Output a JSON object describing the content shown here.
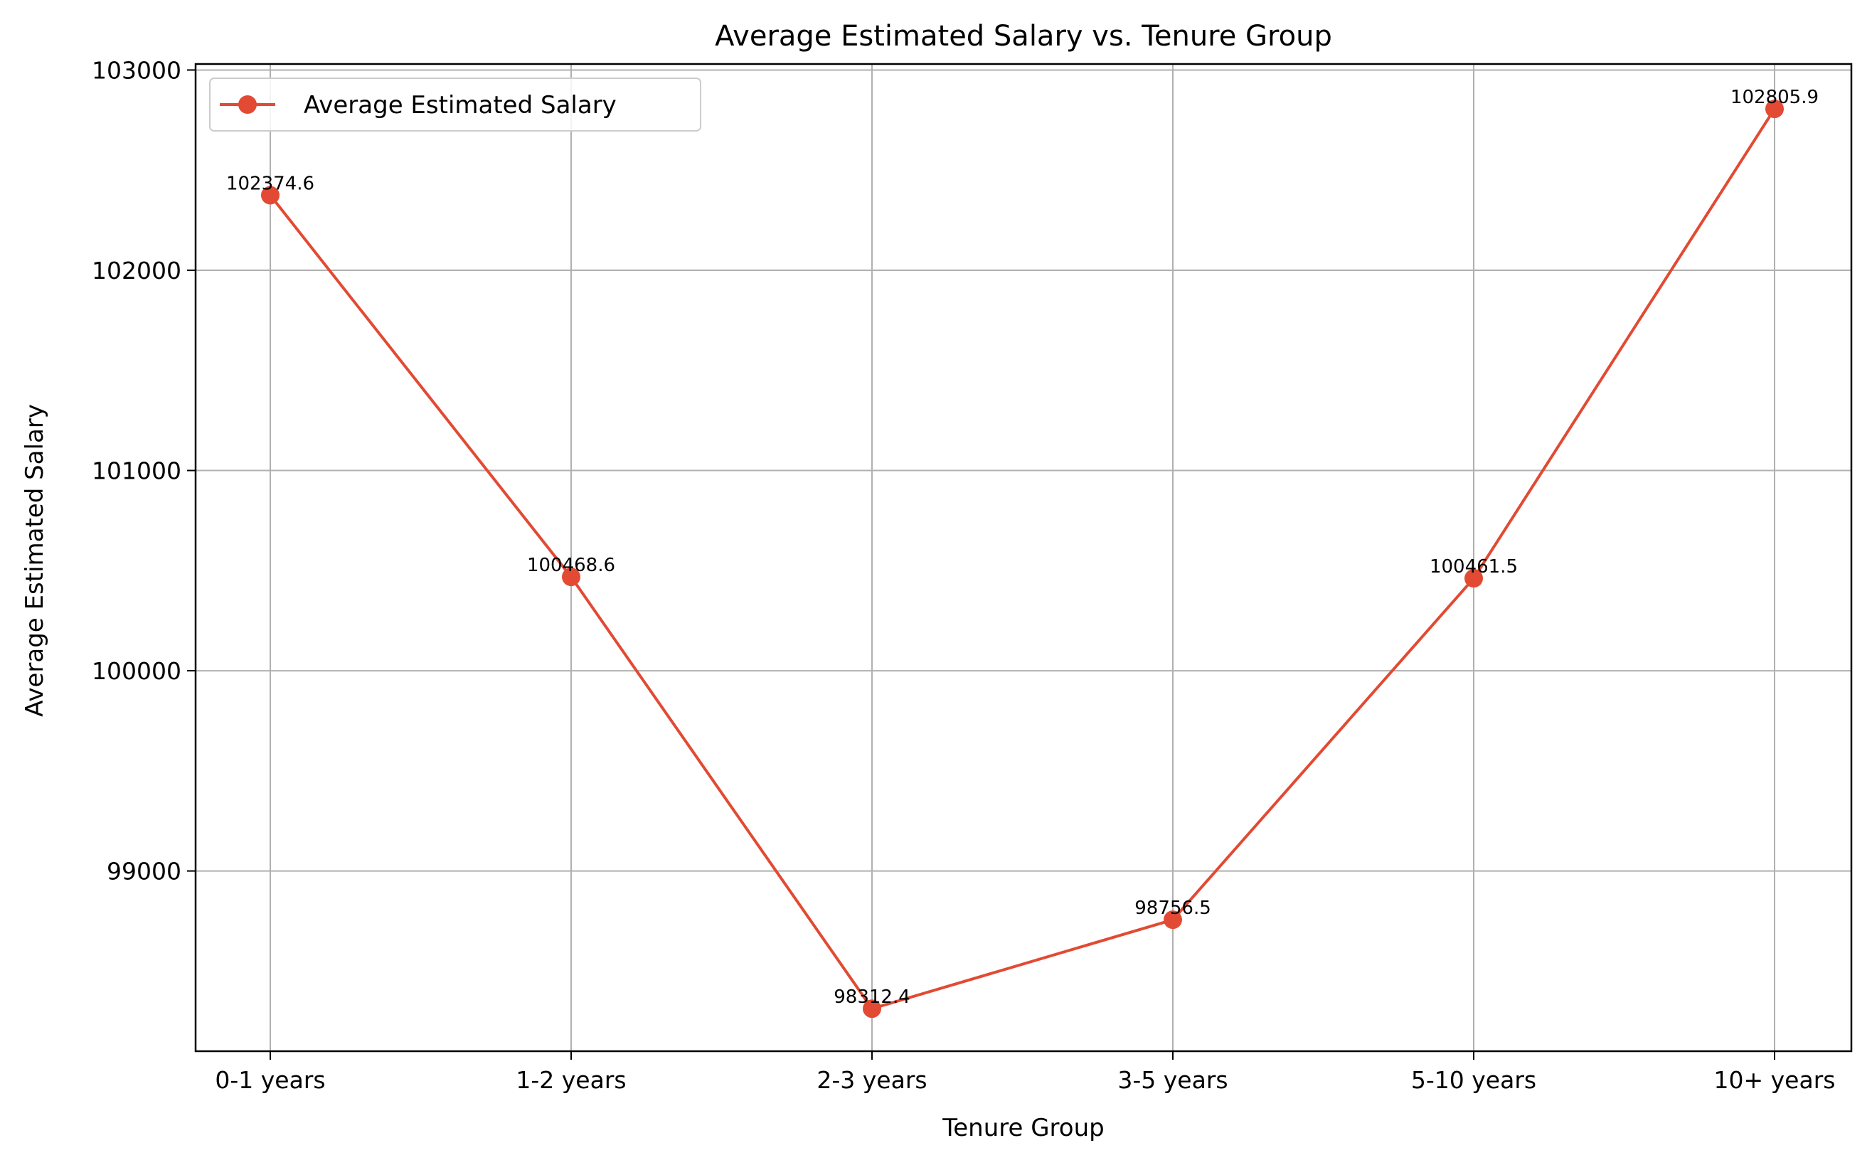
{
  "chart_data": {
    "type": "line",
    "title": "Average Estimated Salary vs. Tenure Group",
    "xlabel": "Tenure Group",
    "ylabel": "Average Estimated Salary",
    "categories": [
      "0-1 years",
      "1-2 years",
      "2-3 years",
      "3-5 years",
      "5-10 years",
      "10+ years"
    ],
    "series": [
      {
        "name": "Average Estimated Salary",
        "values": [
          102374.6,
          100468.6,
          98312.4,
          98756.5,
          100461.5,
          102805.9
        ],
        "labels": [
          "102374.6",
          "100468.6",
          "98312.4",
          "98756.5",
          "100461.5",
          "102805.9"
        ],
        "color": "#e24a33",
        "marker": "circle"
      }
    ],
    "ylim": [
      98100,
      103030
    ],
    "yticks": [
      99000,
      100000,
      101000,
      102000,
      103000
    ],
    "ytick_labels": [
      "99000",
      "100000",
      "101000",
      "102000",
      "103000"
    ],
    "grid": true,
    "legend": {
      "position": "top-left"
    }
  }
}
